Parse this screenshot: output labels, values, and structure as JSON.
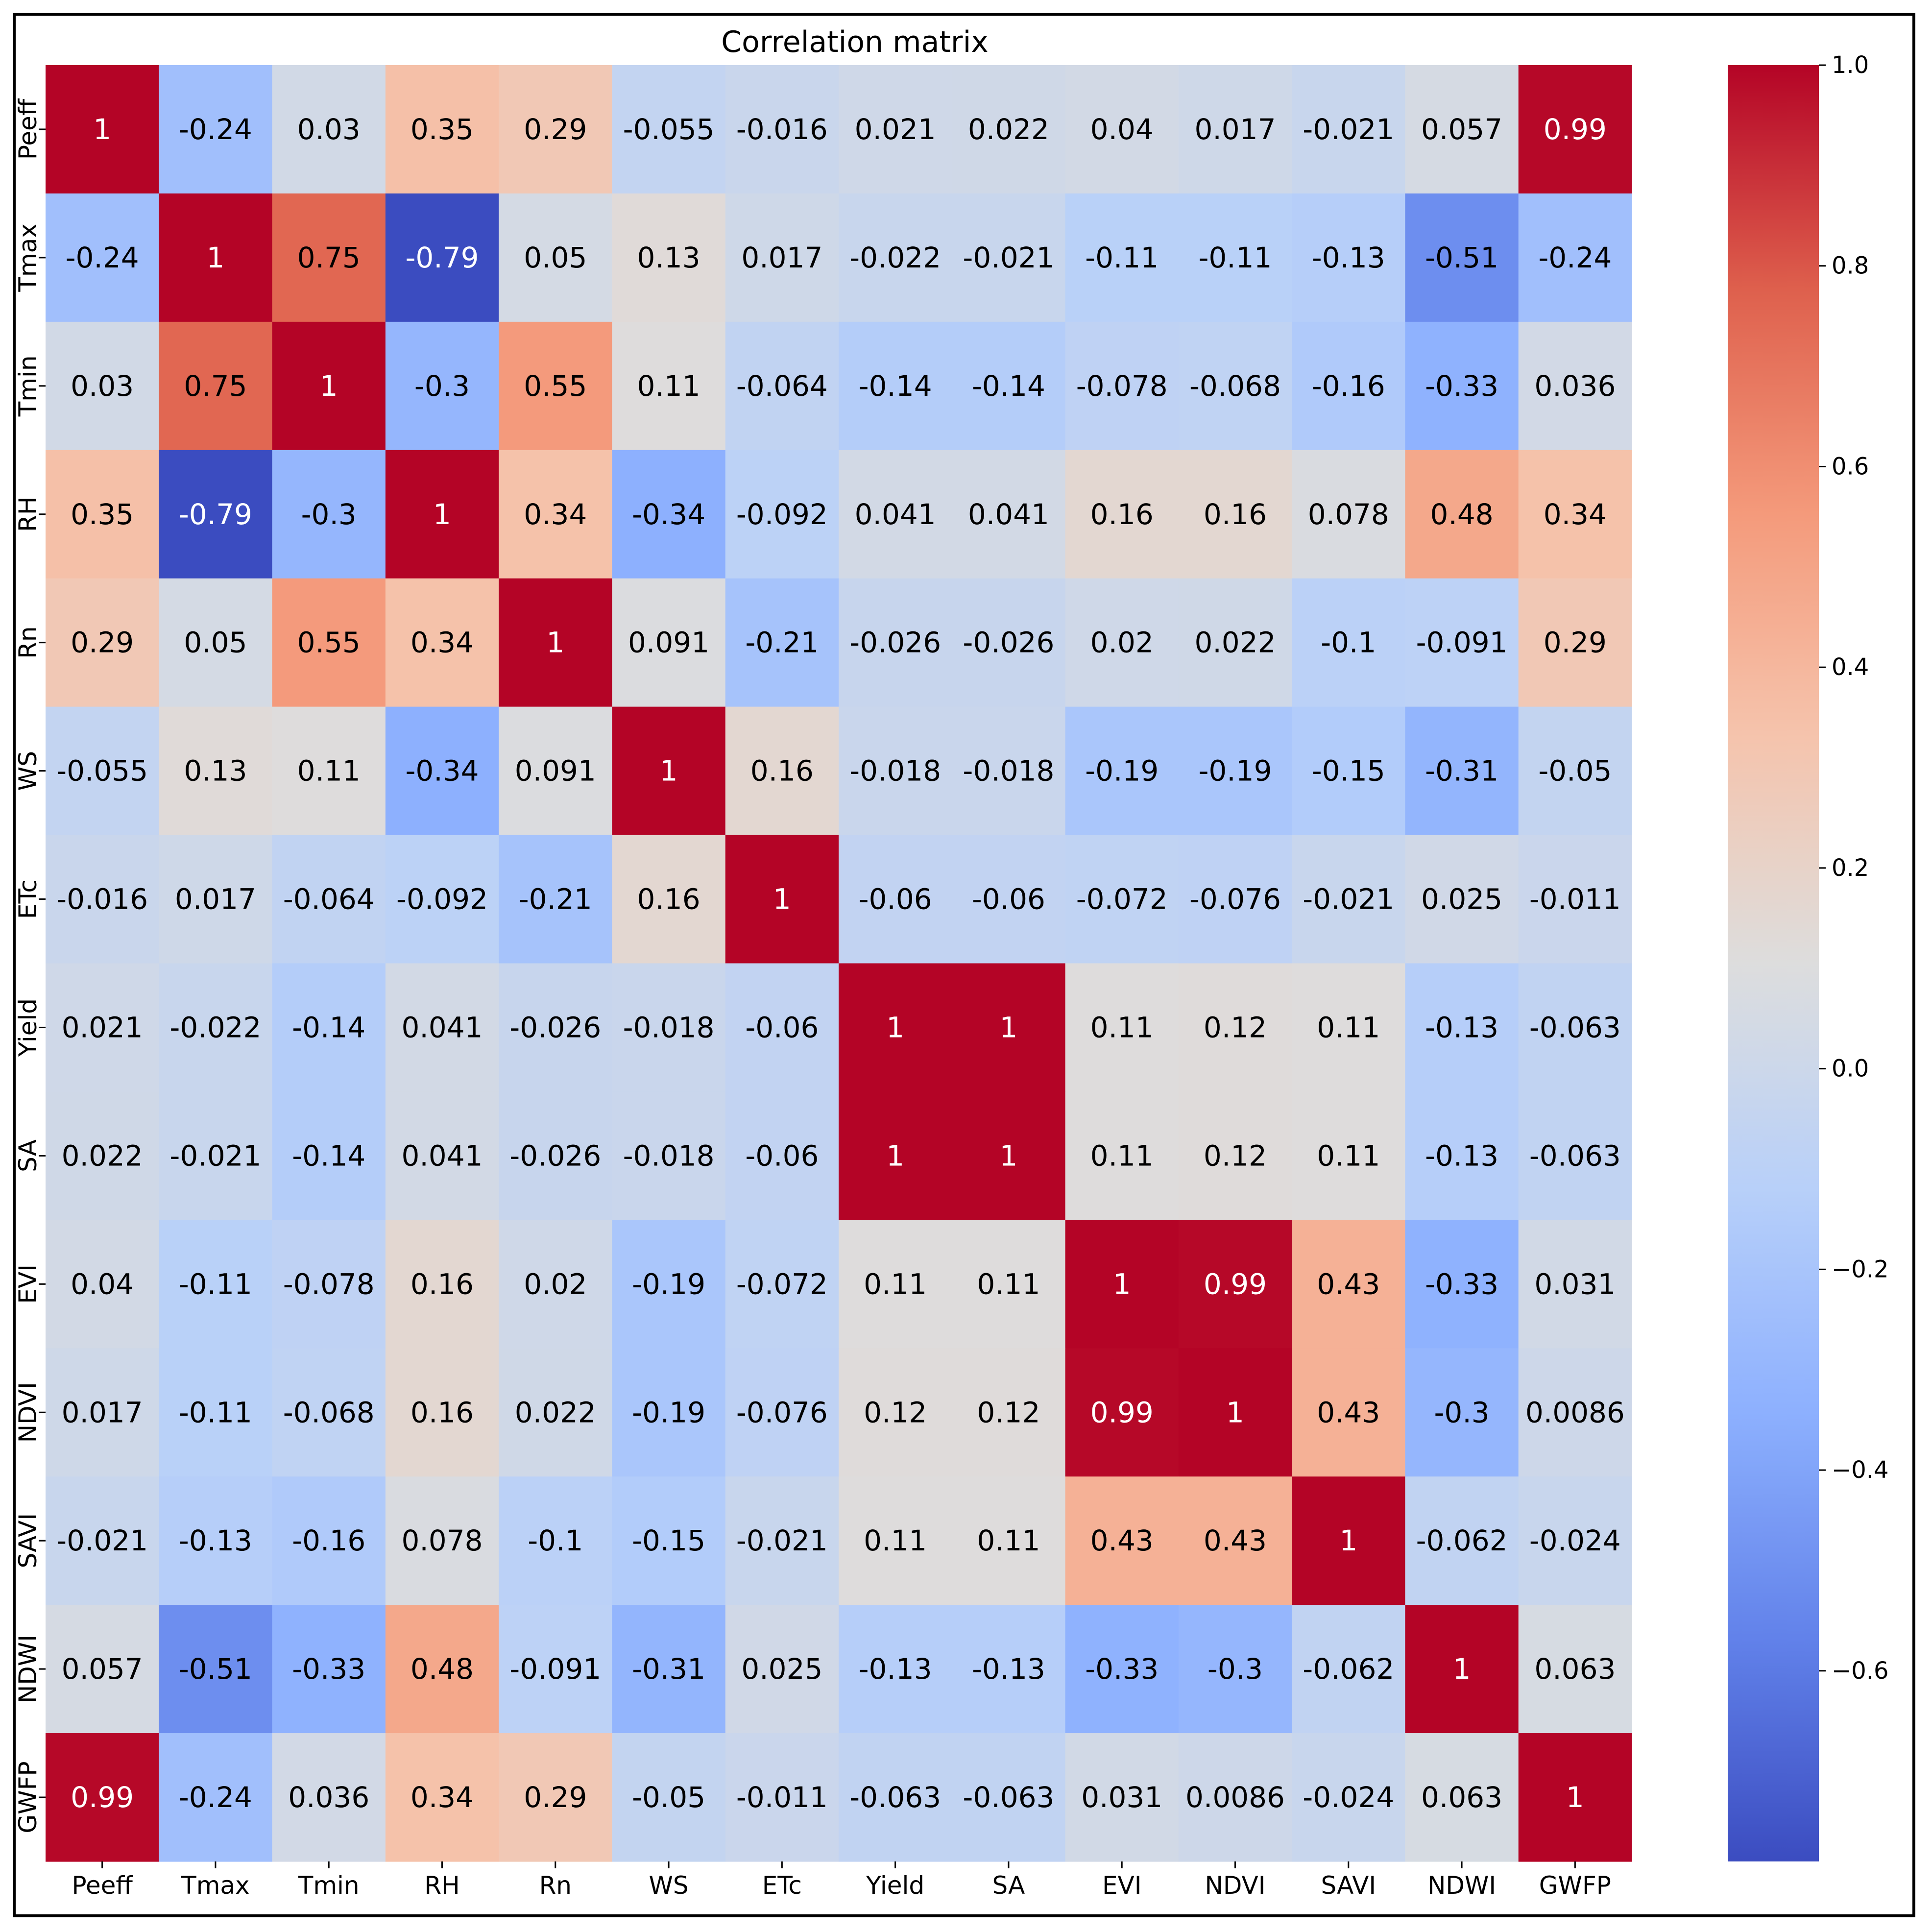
{
  "chart_data": {
    "type": "heatmap",
    "title": "Correlation matrix",
    "labels": [
      "Peeff",
      "Tmax",
      "Tmin",
      "RH",
      "Rn",
      "WS",
      "ETc",
      "Yield",
      "SA",
      "EVI",
      "NDVI",
      "SAVI",
      "NDWI",
      "GWFP"
    ],
    "matrix": [
      [
        "1",
        "-0.24",
        "0.03",
        "0.35",
        "0.29",
        "-0.055",
        "-0.016",
        "0.021",
        "0.022",
        "0.04",
        "0.017",
        "-0.021",
        "0.057",
        "0.99"
      ],
      [
        "-0.24",
        "1",
        "0.75",
        "-0.79",
        "0.05",
        "0.13",
        "0.017",
        "-0.022",
        "-0.021",
        "-0.11",
        "-0.11",
        "-0.13",
        "-0.51",
        "-0.24"
      ],
      [
        "0.03",
        "0.75",
        "1",
        "-0.3",
        "0.55",
        "0.11",
        "-0.064",
        "-0.14",
        "-0.14",
        "-0.078",
        "-0.068",
        "-0.16",
        "-0.33",
        "0.036"
      ],
      [
        "0.35",
        "-0.79",
        "-0.3",
        "1",
        "0.34",
        "-0.34",
        "-0.092",
        "0.041",
        "0.041",
        "0.16",
        "0.16",
        "0.078",
        "0.48",
        "0.34"
      ],
      [
        "0.29",
        "0.05",
        "0.55",
        "0.34",
        "1",
        "0.091",
        "-0.21",
        "-0.026",
        "-0.026",
        "0.02",
        "0.022",
        "-0.1",
        "-0.091",
        "0.29"
      ],
      [
        "-0.055",
        "0.13",
        "0.11",
        "-0.34",
        "0.091",
        "1",
        "0.16",
        "-0.018",
        "-0.018",
        "-0.19",
        "-0.19",
        "-0.15",
        "-0.31",
        "-0.05"
      ],
      [
        "-0.016",
        "0.017",
        "-0.064",
        "-0.092",
        "-0.21",
        "0.16",
        "1",
        "-0.06",
        "-0.06",
        "-0.072",
        "-0.076",
        "-0.021",
        "0.025",
        "-0.011"
      ],
      [
        "0.021",
        "-0.022",
        "-0.14",
        "0.041",
        "-0.026",
        "-0.018",
        "-0.06",
        "1",
        "1",
        "0.11",
        "0.12",
        "0.11",
        "-0.13",
        "-0.063"
      ],
      [
        "0.022",
        "-0.021",
        "-0.14",
        "0.041",
        "-0.026",
        "-0.018",
        "-0.06",
        "1",
        "1",
        "0.11",
        "0.12",
        "0.11",
        "-0.13",
        "-0.063"
      ],
      [
        "0.04",
        "-0.11",
        "-0.078",
        "0.16",
        "0.02",
        "-0.19",
        "-0.072",
        "0.11",
        "0.11",
        "1",
        "0.99",
        "0.43",
        "-0.33",
        "0.031"
      ],
      [
        "0.017",
        "-0.11",
        "-0.068",
        "0.16",
        "0.022",
        "-0.19",
        "-0.076",
        "0.12",
        "0.12",
        "0.99",
        "1",
        "0.43",
        "-0.3",
        "0.0086"
      ],
      [
        "-0.021",
        "-0.13",
        "-0.16",
        "0.078",
        "-0.1",
        "-0.15",
        "-0.021",
        "0.11",
        "0.11",
        "0.43",
        "0.43",
        "1",
        "-0.062",
        "-0.024"
      ],
      [
        "0.057",
        "-0.51",
        "-0.33",
        "0.48",
        "-0.091",
        "-0.31",
        "0.025",
        "-0.13",
        "-0.13",
        "-0.33",
        "-0.3",
        "-0.062",
        "1",
        "0.063"
      ],
      [
        "0.99",
        "-0.24",
        "0.036",
        "0.34",
        "0.29",
        "-0.05",
        "-0.011",
        "-0.063",
        "-0.063",
        "0.031",
        "0.0086",
        "-0.024",
        "0.063",
        "1"
      ]
    ],
    "colorbar": {
      "range": [
        -0.79,
        1.0
      ],
      "ticks": [
        1.0,
        0.8,
        0.6,
        0.4,
        0.2,
        0.0,
        -0.2,
        -0.4,
        -0.6
      ],
      "tick_labels": [
        "1.0",
        "0.8",
        "0.6",
        "0.4",
        "0.2",
        "0.0",
        "−0.2",
        "−0.4",
        "−0.6"
      ],
      "colormap": "coolwarm"
    }
  }
}
